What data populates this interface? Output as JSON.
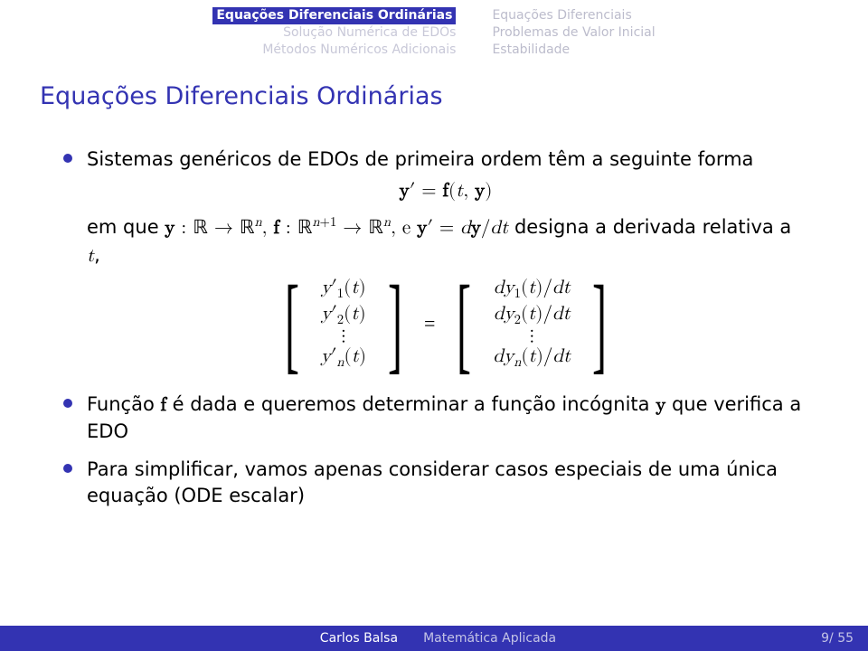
{
  "header": {
    "left": {
      "line1": "Equações Diferenciais Ordinárias",
      "line2": "Solução Numérica de EDOs",
      "line3": "Métodos Numéricos Adicionais"
    },
    "right": {
      "line1": "Equações Diferenciais",
      "line2": "Problemas de Valor Inicial",
      "line3": "Estabilidade"
    }
  },
  "title": "Equações Diferenciais Ordinárias",
  "bullets": {
    "b1_part1": "Sistemas genéricos de EDOs de primeira ordem têm a seguinte forma",
    "eq1": "y′ = f(t, y)",
    "b1_part2a": "em que ",
    "b1_part2b": " designa a derivada relativa a ",
    "b2": "Função f é dada e queremos determinar a função incógnita y que verifica a EDO",
    "b3": "Para simplificar, vamos apenas considerar casos especiais de uma única equação (ODE escalar)"
  },
  "matrix": {
    "left": [
      "y′₁(t)",
      "y′₂(t)",
      "⋮",
      "y′ₙ(t)"
    ],
    "right": [
      "dy₁(t)/dt",
      "dy₂(t)/dt",
      "⋮",
      "dyₙ(t)/dt"
    ]
  },
  "footer": {
    "author": "Carlos Balsa",
    "course": "Matemática Aplicada",
    "page": "9/ 55"
  },
  "colors": {
    "accent": "#3333b2",
    "bg": "#ffffff",
    "header_muted": "#c8c8d8",
    "header_right": "#bcbccc",
    "footer_muted": "#c4c4e6"
  }
}
